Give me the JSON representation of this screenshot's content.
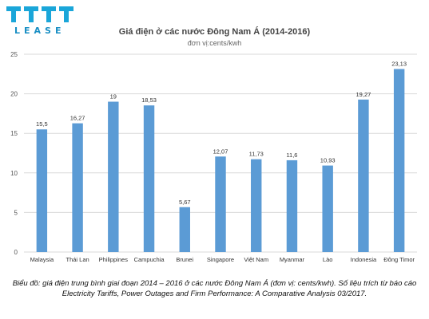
{
  "logo": {
    "letters": "TTTT",
    "word": "LEASE"
  },
  "chart_data": {
    "type": "bar",
    "title": "Giá điện ở các nước Đông Nam Á (2014-2016)",
    "subtitle": "đơn vị:cents/kwh",
    "categories": [
      "Malaysia",
      "Thái Lan",
      "Philippines",
      "Campuchia",
      "Brunei",
      "Singapore",
      "Việt Nam",
      "Myanmar",
      "Lào",
      "Indonesia",
      "Đông Timor"
    ],
    "values": [
      15.5,
      16.27,
      19,
      18.53,
      5.67,
      12.07,
      11.73,
      11.6,
      10.93,
      19.27,
      23.13
    ],
    "value_labels": [
      "15,5",
      "16,27",
      "19",
      "18,53",
      "5,67",
      "12,07",
      "11,73",
      "11,6",
      "10,93",
      "19,27",
      "23,13"
    ],
    "yticks": [
      "0",
      "5",
      "10",
      "15",
      "20",
      "25"
    ],
    "ylim": [
      0,
      25
    ],
    "grid": true,
    "bar_color": "#5b9bd5",
    "grid_color": "#d9d9d9"
  },
  "caption": "Biểu đồ: giá điện trung bình giai đoạn 2014 – 2016 ở các nước Đông Nam Á (đơn vị: cents/kwh). Số liệu trích từ báo cáo Electricity Tariffs, Power Outages and Firm Performance: A Comparative Analysis 03/2017."
}
